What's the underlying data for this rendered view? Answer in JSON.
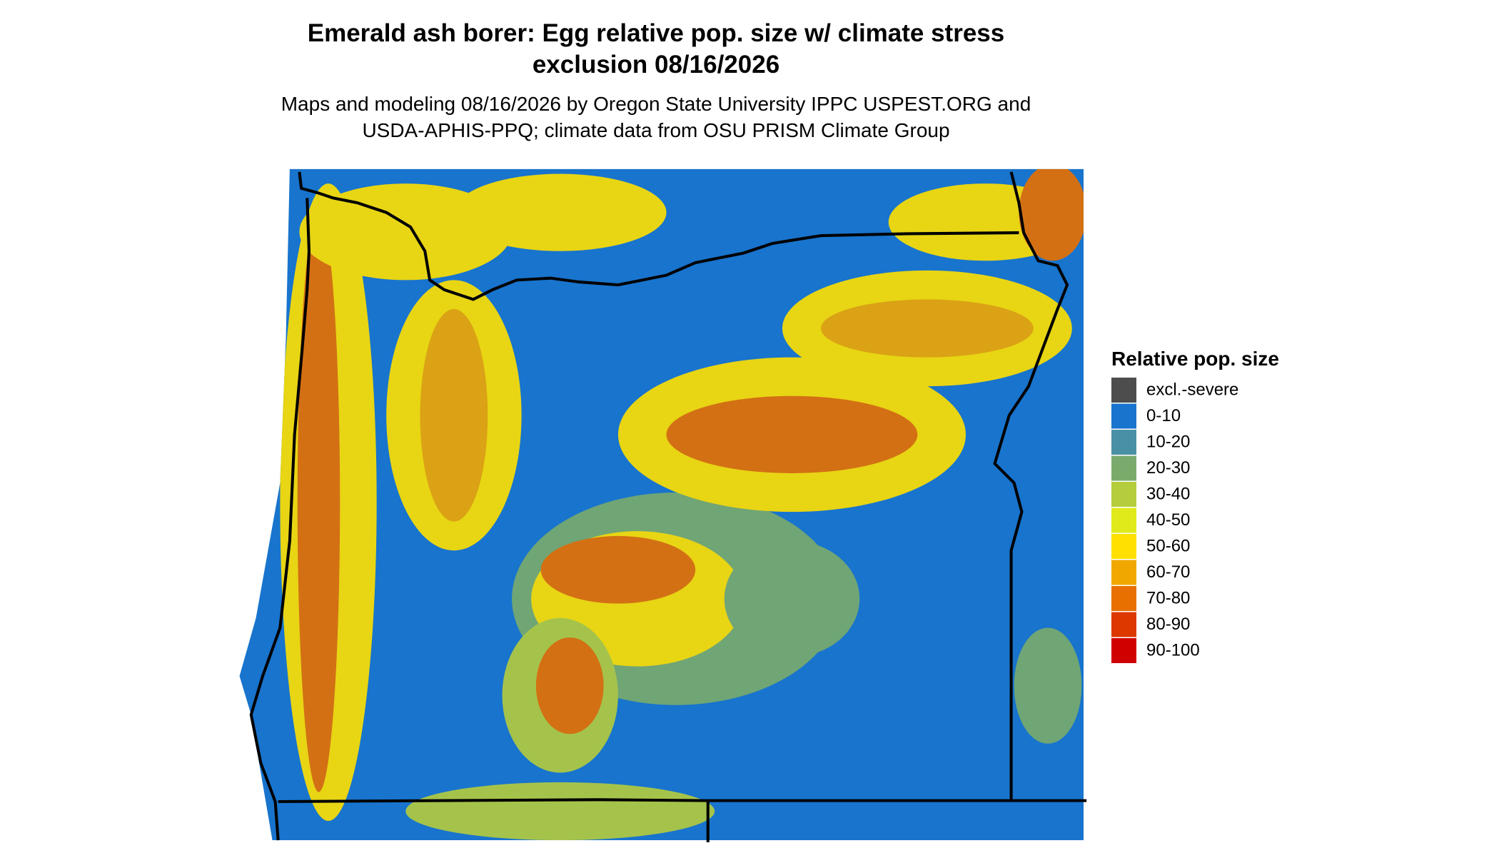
{
  "title": [
    "Emerald ash borer: Egg relative pop. size w/ climate stress",
    "exclusion 08/16/2026"
  ],
  "subtitle": [
    "Maps and modeling 08/16/2026 by Oregon State University IPPC USPEST.ORG and",
    "USDA-APHIS-PPQ; climate data from OSU PRISM Climate Group"
  ],
  "legend": {
    "title": "Relative pop. size",
    "items": [
      {
        "label": "excl.-severe",
        "color": "#4d4d4d"
      },
      {
        "label": "0-10",
        "color": "#1874cd"
      },
      {
        "label": "10-20",
        "color": "#4a90a4"
      },
      {
        "label": "20-30",
        "color": "#7aab6c"
      },
      {
        "label": "30-40",
        "color": "#b5cc3d"
      },
      {
        "label": "40-50",
        "color": "#e0ea1a"
      },
      {
        "label": "50-60",
        "color": "#ffe000"
      },
      {
        "label": "60-70",
        "color": "#f0a800"
      },
      {
        "label": "70-80",
        "color": "#e87000"
      },
      {
        "label": "80-90",
        "color": "#dc3800"
      },
      {
        "label": "90-100",
        "color": "#d00000"
      }
    ]
  }
}
